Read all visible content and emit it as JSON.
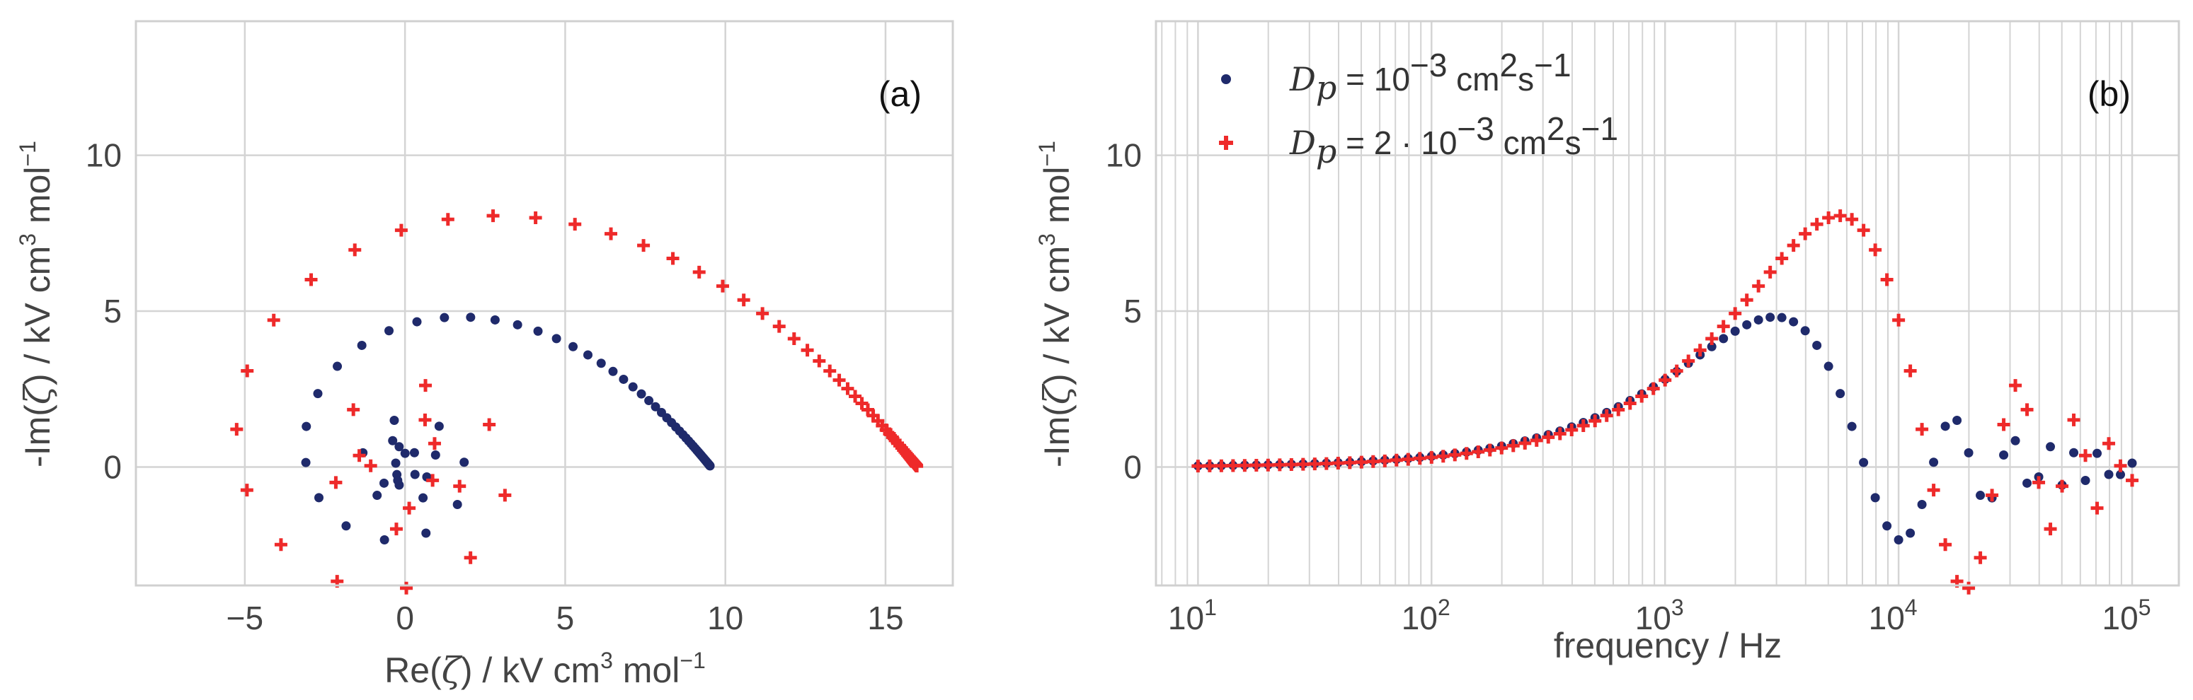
{
  "chart_data": [
    {
      "type": "scatter",
      "panel_label": "(a)",
      "xlabel_parts": [
        "Re(",
        "ζ",
        ") / kV cm",
        "3",
        " mol",
        "−1"
      ],
      "ylabel_parts": [
        "-Im(",
        "ζ",
        ") / kV cm",
        "3",
        " mol",
        "−1"
      ],
      "xlim": [
        -8.4,
        17.1
      ],
      "ylim": [
        -3.8,
        14.3
      ],
      "xticks": [
        -5,
        0,
        5,
        10,
        15
      ],
      "xtick_labels": [
        "−5",
        "0",
        "5",
        "10",
        "15"
      ],
      "yticks": [
        0,
        5,
        10
      ],
      "ytick_labels": [
        "0",
        "5",
        "10"
      ],
      "grid": true,
      "series": [
        {
          "name": "D_p = 10^-3 cm^2 s^-1",
          "color": "#1f2a6b",
          "marker": "dot",
          "params": {
            "A": 9.55,
            "fpeak": 3400
          }
        },
        {
          "name": "D_p = 2·10^-3 cm^2 s^-1",
          "color": "#ee2a2a",
          "marker": "plus",
          "params": {
            "A": 16.0,
            "fpeak": 6400
          }
        }
      ],
      "frequency_range_hz": [
        10,
        100000
      ],
      "points_per_decade": 20
    },
    {
      "type": "scatter",
      "panel_label": "(b)",
      "xscale": "log",
      "xlabel": "frequency / Hz",
      "ylabel_parts": [
        "-Im(",
        "ζ",
        ") / kV cm",
        "3",
        " mol",
        "−1"
      ],
      "xlim_log10": [
        0.82,
        5.2
      ],
      "ylim": [
        -3.8,
        14.3
      ],
      "xticks_log10": [
        1,
        2,
        3,
        4,
        5
      ],
      "xtick_base": "10",
      "xtick_exps": [
        "1",
        "2",
        "3",
        "4",
        "5"
      ],
      "yticks": [
        0,
        5,
        10
      ],
      "ytick_labels": [
        "0",
        "5",
        "10"
      ],
      "grid": true,
      "legend_position": "top-left",
      "legend": [
        {
          "sym": "D",
          "sub": "p",
          "eq": " = ",
          "mant": "10",
          "exp": "−3",
          "unit": " cm",
          "u2": "2",
          "s": "s",
          "s_exp": "−1"
        },
        {
          "sym": "D",
          "sub": "p",
          "eq": " = ",
          "pre": "2 · ",
          "mant": "10",
          "exp": "−3",
          "unit": " cm",
          "u2": "2",
          "s": "s",
          "s_exp": "−1"
        }
      ]
    }
  ]
}
